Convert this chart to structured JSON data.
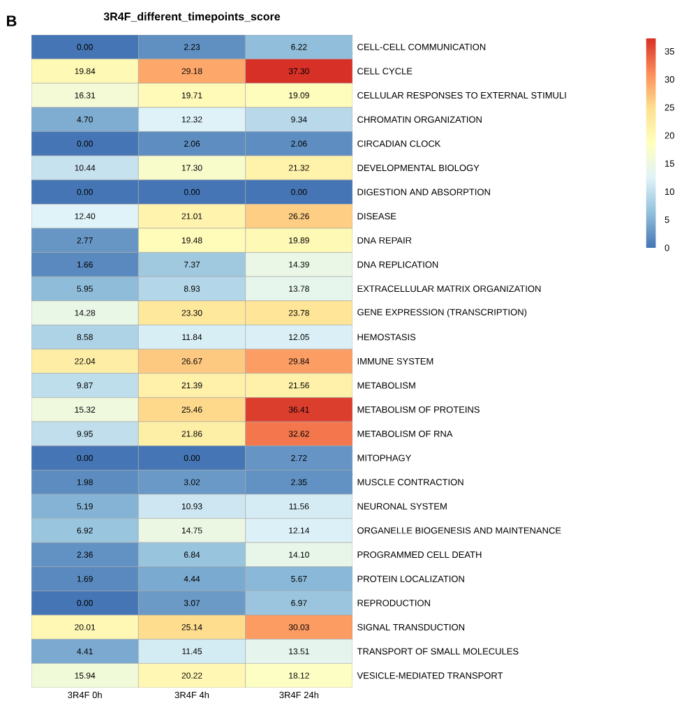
{
  "chart_data": {
    "type": "heatmap",
    "title": "3R4F_different_timepoints_score",
    "annotations": [
      "B"
    ],
    "categories": [
      "3R4F 0h",
      "3R4F 4h",
      "3R4F 24h"
    ],
    "y_categories": [
      "CELL-CELL COMMUNICATION",
      "CELL CYCLE",
      "CELLULAR RESPONSES TO EXTERNAL STIMULI",
      "CHROMATIN ORGANIZATION",
      "CIRCADIAN CLOCK",
      "DEVELOPMENTAL BIOLOGY",
      "DIGESTION AND ABSORPTION",
      "DISEASE",
      "DNA REPAIR",
      "DNA REPLICATION",
      "EXTRACELLULAR MATRIX ORGANIZATION",
      "GENE EXPRESSION (TRANSCRIPTION)",
      "HEMOSTASIS",
      "IMMUNE SYSTEM",
      "METABOLISM",
      "METABOLISM OF PROTEINS",
      "METABOLISM OF RNA",
      "MITOPHAGY",
      "MUSCLE CONTRACTION",
      "NEURONAL SYSTEM",
      "ORGANELLE BIOGENESIS AND MAINTENANCE",
      "PROGRAMMED CELL DEATH",
      "PROTEIN LOCALIZATION",
      "REPRODUCTION",
      "SIGNAL TRANSDUCTION",
      "TRANSPORT OF SMALL MOLECULES",
      "VESICLE-MEDIATED TRANSPORT"
    ],
    "cells": [
      [
        0.0,
        2.23,
        6.22
      ],
      [
        19.84,
        29.18,
        37.3
      ],
      [
        16.31,
        19.71,
        19.09
      ],
      [
        4.7,
        12.32,
        9.34
      ],
      [
        0.0,
        2.06,
        2.06
      ],
      [
        10.44,
        17.3,
        21.32
      ],
      [
        0.0,
        0.0,
        0.0
      ],
      [
        12.4,
        21.01,
        26.26
      ],
      [
        2.77,
        19.48,
        19.89
      ],
      [
        1.66,
        7.37,
        14.39
      ],
      [
        5.95,
        8.93,
        13.78
      ],
      [
        14.28,
        23.3,
        23.78
      ],
      [
        8.58,
        11.84,
        12.05
      ],
      [
        22.04,
        26.67,
        29.84
      ],
      [
        9.87,
        21.39,
        21.56
      ],
      [
        15.32,
        25.46,
        36.41
      ],
      [
        9.95,
        21.86,
        32.62
      ],
      [
        0.0,
        0.0,
        2.72
      ],
      [
        1.98,
        3.02,
        2.35
      ],
      [
        5.19,
        10.93,
        11.56
      ],
      [
        6.92,
        14.75,
        12.14
      ],
      [
        2.36,
        6.84,
        14.1
      ],
      [
        1.69,
        4.44,
        5.67
      ],
      [
        0.0,
        3.07,
        6.97
      ],
      [
        20.01,
        25.14,
        30.03
      ],
      [
        4.41,
        11.45,
        13.51
      ],
      [
        15.94,
        20.22,
        18.12
      ]
    ],
    "cell_labels": [
      [
        "0.00",
        "2.23",
        "6.22"
      ],
      [
        "19.84",
        "29.18",
        "37.30"
      ],
      [
        "16.31",
        "19.71",
        "19.09"
      ],
      [
        "4.70",
        "12.32",
        "9.34"
      ],
      [
        "0.00",
        "2.06",
        "2.06"
      ],
      [
        "10.44",
        "17.30",
        "21.32"
      ],
      [
        "0.00",
        "0.00",
        "0.00"
      ],
      [
        "12.40",
        "21.01",
        "26.26"
      ],
      [
        "2.77",
        "19.48",
        "19.89"
      ],
      [
        "1.66",
        "7.37",
        "14.39"
      ],
      [
        "5.95",
        "8.93",
        "13.78"
      ],
      [
        "14.28",
        "23.30",
        "23.78"
      ],
      [
        "8.58",
        "11.84",
        "12.05"
      ],
      [
        "22.04",
        "26.67",
        "29.84"
      ],
      [
        "9.87",
        "21.39",
        "21.56"
      ],
      [
        "15.32",
        "25.46",
        "36.41"
      ],
      [
        "9.95",
        "21.86",
        "32.62"
      ],
      [
        "0.00",
        "0.00",
        "2.72"
      ],
      [
        "1.98",
        "3.02",
        "2.35"
      ],
      [
        "5.19",
        "10.93",
        "11.56"
      ],
      [
        "6.92",
        "14.75",
        "12.14"
      ],
      [
        "2.36",
        "6.84",
        "14.10"
      ],
      [
        "1.69",
        "4.44",
        "5.67"
      ],
      [
        "0.00",
        "3.07",
        "6.97"
      ],
      [
        "20.01",
        "25.14",
        "30.03"
      ],
      [
        "4.41",
        "11.45",
        "13.51"
      ],
      [
        "15.94",
        "20.22",
        "18.12"
      ]
    ],
    "clim": [
      0,
      37.3
    ],
    "cticks": [
      0,
      5,
      10,
      15,
      20,
      25,
      30,
      35
    ]
  }
}
